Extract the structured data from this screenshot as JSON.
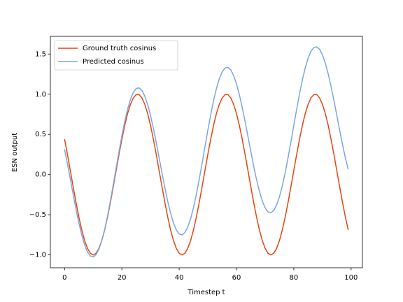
{
  "chart_data": {
    "type": "line",
    "xlabel": "Timestep t",
    "ylabel": "ESN output",
    "x": [
      0,
      1,
      2,
      3,
      4,
      5,
      6,
      7,
      8,
      9,
      10,
      11,
      12,
      13,
      14,
      15,
      16,
      17,
      18,
      19,
      20,
      21,
      22,
      23,
      24,
      25,
      26,
      27,
      28,
      29,
      30,
      31,
      32,
      33,
      34,
      35,
      36,
      37,
      38,
      39,
      40,
      41,
      42,
      43,
      44,
      45,
      46,
      47,
      48,
      49,
      50,
      51,
      52,
      53,
      54,
      55,
      56,
      57,
      58,
      59,
      60,
      61,
      62,
      63,
      64,
      65,
      66,
      67,
      68,
      69,
      70,
      71,
      72,
      73,
      74,
      75,
      76,
      77,
      78,
      79,
      80,
      81,
      82,
      83,
      84,
      85,
      86,
      87,
      88,
      89,
      90,
      91,
      92,
      93,
      94,
      95,
      96,
      97,
      98,
      99
    ],
    "series": [
      {
        "name": "Ground truth cosinus",
        "color": "#e8440f",
        "values": [
          0.44,
          0.251,
          0.051,
          -0.151,
          -0.347,
          -0.529,
          -0.689,
          -0.821,
          -0.919,
          -0.98,
          -1.0,
          -0.98,
          -0.919,
          -0.821,
          -0.689,
          -0.529,
          -0.347,
          -0.151,
          0.051,
          0.251,
          0.44,
          0.612,
          0.759,
          0.874,
          0.954,
          0.995,
          0.995,
          0.954,
          0.874,
          0.759,
          0.612,
          0.44,
          0.251,
          0.051,
          -0.151,
          -0.347,
          -0.529,
          -0.689,
          -0.821,
          -0.919,
          -0.98,
          -1.0,
          -0.98,
          -0.919,
          -0.821,
          -0.689,
          -0.529,
          -0.347,
          -0.151,
          0.051,
          0.251,
          0.44,
          0.612,
          0.759,
          0.874,
          0.954,
          0.995,
          0.995,
          0.954,
          0.874,
          0.759,
          0.612,
          0.44,
          0.251,
          0.051,
          -0.151,
          -0.347,
          -0.529,
          -0.689,
          -0.821,
          -0.919,
          -0.98,
          -1.0,
          -0.98,
          -0.919,
          -0.821,
          -0.689,
          -0.529,
          -0.347,
          -0.151,
          0.051,
          0.251,
          0.44,
          0.612,
          0.759,
          0.874,
          0.954,
          0.995,
          0.995,
          0.954,
          0.874,
          0.759,
          0.612,
          0.44,
          0.251,
          0.051,
          -0.151,
          -0.347,
          -0.529,
          -0.689
        ]
      },
      {
        "name": "Predicted cosinus",
        "color": "#78a7e8",
        "values": [
          0.315,
          0.135,
          -0.054,
          -0.246,
          -0.432,
          -0.603,
          -0.753,
          -0.875,
          -0.964,
          -1.014,
          -1.026,
          -0.997,
          -0.928,
          -0.822,
          -0.683,
          -0.516,
          -0.327,
          -0.126,
          0.082,
          0.287,
          0.483,
          0.66,
          0.814,
          0.936,
          1.023,
          1.071,
          1.079,
          1.048,
          0.976,
          0.872,
          0.736,
          0.575,
          0.398,
          0.21,
          0.021,
          -0.163,
          -0.333,
          -0.481,
          -0.602,
          -0.69,
          -0.739,
          -0.751,
          -0.722,
          -0.653,
          -0.549,
          -0.411,
          -0.246,
          -0.059,
          0.14,
          0.347,
          0.551,
          0.743,
          0.92,
          1.071,
          1.192,
          1.278,
          1.326,
          1.334,
          1.303,
          1.232,
          1.129,
          0.995,
          0.836,
          0.661,
          0.475,
          0.287,
          0.105,
          -0.063,
          -0.209,
          -0.328,
          -0.415,
          -0.465,
          -0.475,
          -0.448,
          -0.379,
          -0.276,
          -0.139,
          0.024,
          0.209,
          0.407,
          0.611,
          0.813,
          1.004,
          1.179,
          1.328,
          1.448,
          1.534,
          1.581,
          1.589,
          1.559,
          1.49,
          1.387,
          1.254,
          1.096,
          0.923,
          0.739,
          0.554,
          0.374,
          0.208,
          0.064
        ]
      }
    ],
    "xlim": [
      -4.95,
      103.95
    ],
    "xticks": [
      0,
      20,
      40,
      60,
      80,
      100
    ],
    "ylim": [
      -1.16,
      1.72
    ],
    "yticks": [
      {
        "value": -1.0,
        "label": "−1.0"
      },
      {
        "value": -0.5,
        "label": "−0.5"
      },
      {
        "value": 0.0,
        "label": "0.0"
      },
      0.5,
      {
        "value": 1.0,
        "label": "1.0"
      },
      1.5
    ],
    "grid": false,
    "legend": "upper left"
  }
}
